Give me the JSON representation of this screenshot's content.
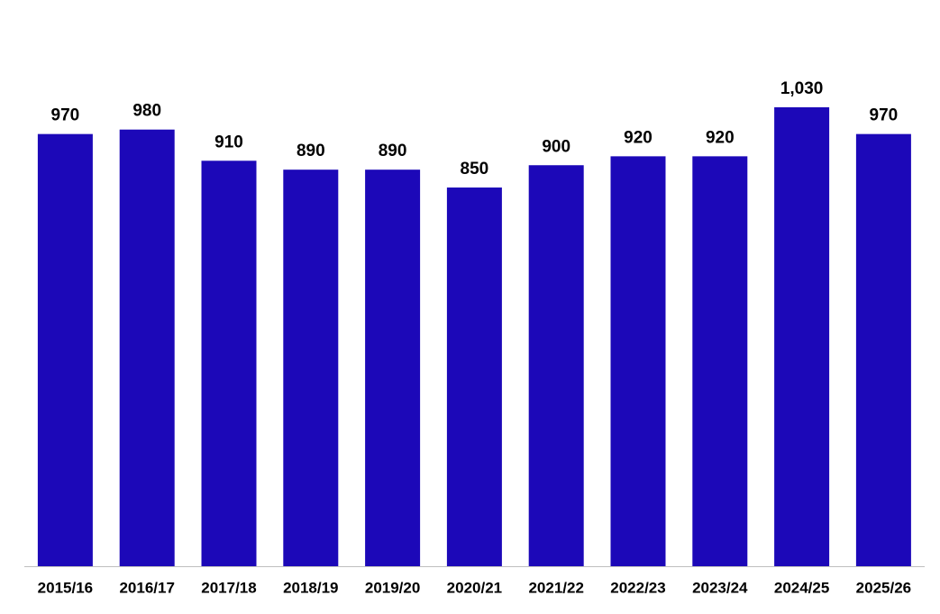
{
  "chart_data": {
    "type": "bar",
    "categories": [
      "2015/16",
      "2016/17",
      "2017/18",
      "2018/19",
      "2019/20",
      "2020/21",
      "2021/22",
      "2022/23",
      "2023/24",
      "2024/25",
      "2025/26"
    ],
    "values": [
      970,
      980,
      910,
      890,
      890,
      850,
      900,
      920,
      920,
      1030,
      970
    ],
    "value_labels": [
      "970",
      "980",
      "910",
      "890",
      "890",
      "850",
      "900",
      "920",
      "920",
      "1,030",
      "970"
    ],
    "color": "#1c08b8"
  }
}
